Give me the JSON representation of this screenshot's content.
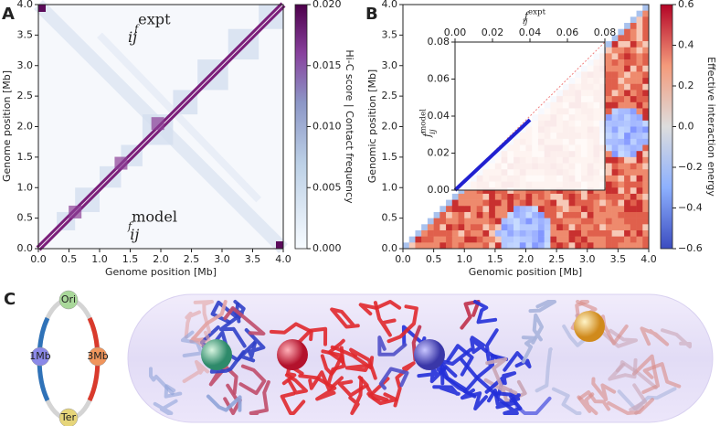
{
  "panels": [
    {
      "letter": "A",
      "xlabel": "Genome position [Mb]",
      "ylabel": "Genome position [Mb]",
      "xlim": [
        0,
        4
      ],
      "ylim": [
        0,
        4
      ],
      "xticks": [
        {
          "value": 0,
          "label": "0.0"
        },
        {
          "value": 0.5,
          "label": "0.5"
        },
        {
          "value": 1,
          "label": "1.0"
        },
        {
          "value": 1.5,
          "label": "1.5"
        },
        {
          "value": 2,
          "label": "2.0"
        },
        {
          "value": 2.5,
          "label": "2.5"
        },
        {
          "value": 3,
          "label": "3.0"
        },
        {
          "value": 3.5,
          "label": "3.5"
        },
        {
          "value": 4,
          "label": "4.0"
        }
      ],
      "yticks": [
        {
          "value": 0,
          "label": "0.0"
        },
        {
          "value": 0.5,
          "label": "0.5"
        },
        {
          "value": 1,
          "label": "1.0"
        },
        {
          "value": 1.5,
          "label": "1.5"
        },
        {
          "value": 2,
          "label": "2.0"
        },
        {
          "value": 2.5,
          "label": "2.5"
        },
        {
          "value": 3,
          "label": "3.0"
        },
        {
          "value": 3.5,
          "label": "3.5"
        },
        {
          "value": 4,
          "label": "4.0"
        }
      ],
      "colorbar": {
        "label": "Hi-C score | Contact frequency",
        "lim": [
          0,
          0.02
        ],
        "ticks": [
          {
            "value": 0,
            "label": "0.000"
          },
          {
            "value": 0.005,
            "label": "0.005"
          },
          {
            "value": 0.01,
            "label": "0.010"
          },
          {
            "value": 0.015,
            "label": "0.015"
          },
          {
            "value": 0.02,
            "label": "0.020"
          }
        ]
      },
      "annotations": [
        {
          "base": "f",
          "sub": "ij",
          "sup": "expt"
        },
        {
          "base": "f",
          "sub": "ij",
          "sup": "model"
        }
      ]
    },
    {
      "letter": "B",
      "xlabel": "Genomic position [Mb]",
      "ylabel": "Genomic position [Mb]",
      "xlim": [
        0,
        4
      ],
      "ylim": [
        0,
        4
      ],
      "xticks": [
        {
          "value": 0,
          "label": "0.0"
        },
        {
          "value": 0.5,
          "label": "0.5"
        },
        {
          "value": 1,
          "label": "1.0"
        },
        {
          "value": 1.5,
          "label": "1.5"
        },
        {
          "value": 2,
          "label": "2.0"
        },
        {
          "value": 2.5,
          "label": "2.5"
        },
        {
          "value": 3,
          "label": "3.0"
        },
        {
          "value": 3.5,
          "label": "3.5"
        },
        {
          "value": 4,
          "label": "4.0"
        }
      ],
      "yticks": [
        {
          "value": 0,
          "label": "0.0"
        },
        {
          "value": 0.5,
          "label": "0.5"
        },
        {
          "value": 1,
          "label": "1.0"
        },
        {
          "value": 1.5,
          "label": "1.5"
        },
        {
          "value": 2,
          "label": "2.0"
        },
        {
          "value": 2.5,
          "label": "2.5"
        },
        {
          "value": 3,
          "label": "3.0"
        },
        {
          "value": 3.5,
          "label": "3.5"
        },
        {
          "value": 4,
          "label": "4.0"
        }
      ],
      "colorbar": {
        "label": "Effective interaction energy",
        "lim": [
          -0.6,
          0.6
        ],
        "ticks": [
          {
            "value": -0.6,
            "label": "−0.6"
          },
          {
            "value": -0.4,
            "label": "−0.4"
          },
          {
            "value": -0.2,
            "label": "−0.2"
          },
          {
            "value": 0,
            "label": "0.0"
          },
          {
            "value": 0.2,
            "label": "0.2"
          },
          {
            "value": 0.4,
            "label": "0.4"
          },
          {
            "value": 0.6,
            "label": "0.6"
          }
        ]
      },
      "inset": {
        "xlabel": {
          "base": "f",
          "sub": "ij",
          "sup": "expt"
        },
        "ylabel": {
          "base": "f",
          "sub": "ij",
          "sup": "model"
        },
        "xlim": [
          0,
          0.08
        ],
        "ylim": [
          0,
          0.08
        ],
        "xticks": [
          {
            "value": 0,
            "label": "0.00"
          },
          {
            "value": 0.02,
            "label": "0.02"
          },
          {
            "value": 0.04,
            "label": "0.04"
          },
          {
            "value": 0.06,
            "label": "0.06"
          },
          {
            "value": 0.08,
            "label": "0.08"
          }
        ],
        "yticks": [
          {
            "value": 0,
            "label": "0.00"
          },
          {
            "value": 0.02,
            "label": "0.02"
          },
          {
            "value": 0.04,
            "label": "0.04"
          },
          {
            "value": 0.06,
            "label": "0.06"
          },
          {
            "value": 0.08,
            "label": "0.08"
          }
        ]
      }
    },
    {
      "letter": "C",
      "ring_labels": [
        "Ori",
        "1Mb",
        "3Mb",
        "Ter"
      ]
    }
  ]
}
